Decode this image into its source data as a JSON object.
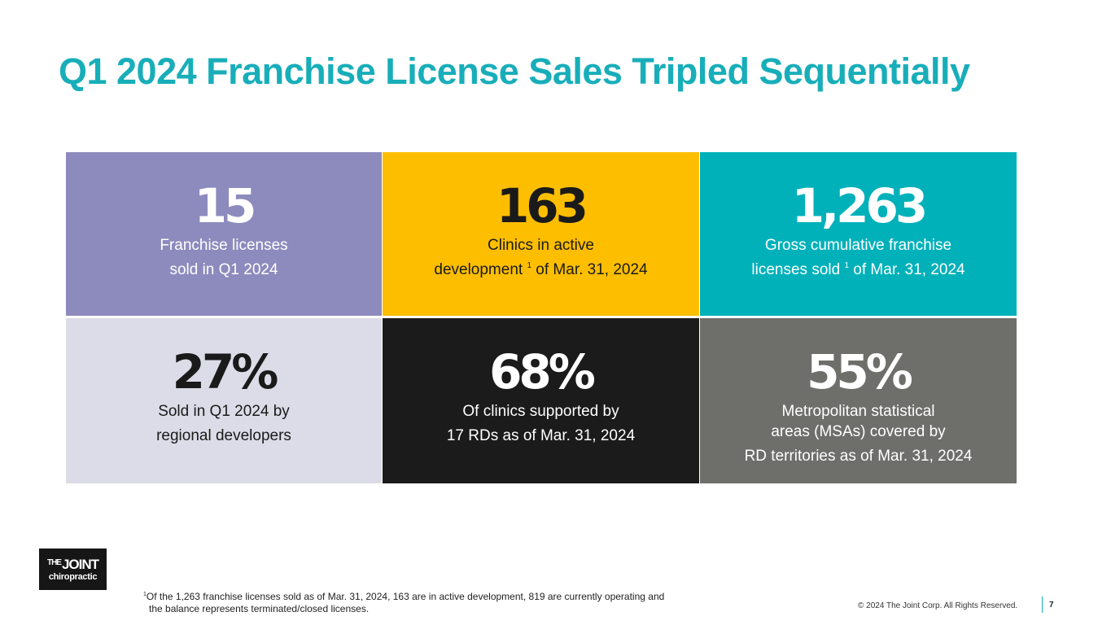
{
  "title": "Q1 2024 Franchise License Sales Tripled Sequentially",
  "tiles": [
    {
      "value": "15",
      "desc_a": "Franchise licenses\nsold in Q1 2024",
      "sup": "",
      "desc_b": "",
      "bg": "#8d8bbd",
      "fg": "#ffffff"
    },
    {
      "value": "163",
      "desc_a": "Clinics in active\ndevelopment ",
      "sup": "1",
      "desc_b": " of Mar. 31, 2024",
      "bg": "#fdbe00",
      "fg": "#1a1a1a"
    },
    {
      "value": "1,263",
      "desc_a": "Gross cumulative franchise\nlicenses sold ",
      "sup": "1",
      "desc_b": " of Mar. 31, 2024",
      "bg": "#00b1ba",
      "fg": "#ffffff"
    },
    {
      "value": "27%",
      "desc_a": "Sold in Q1 2024 by\nregional developers",
      "sup": "",
      "desc_b": "",
      "bg": "#dcdce8",
      "fg": "#1a1a1a"
    },
    {
      "value": "68%",
      "desc_a": "Of clinics supported by\n17 RDs as of Mar. 31, 2024",
      "sup": "",
      "desc_b": "",
      "bg": "#1b1b1b",
      "fg": "#ffffff"
    },
    {
      "value": "55%",
      "desc_a": "Metropolitan statistical\nareas (MSAs) covered by\nRD territories as of Mar. 31, 2024",
      "sup": "",
      "desc_b": "",
      "bg": "#6e6f6b",
      "fg": "#ffffff"
    }
  ],
  "logo": {
    "the": "THE",
    "joint": "JOINT",
    "sub": "chiropractic"
  },
  "footnote": {
    "sup": "1",
    "line1": "Of the 1,263 franchise licenses sold as of Mar. 31, 2024, 163 are in active development, 819 are currently operating and",
    "line2": "the balance represents terminated/closed licenses."
  },
  "copyright": "© 2024 The Joint Corp. All Rights Reserved.",
  "page_number": "7",
  "colors": {
    "accent": "#18aeb9"
  }
}
